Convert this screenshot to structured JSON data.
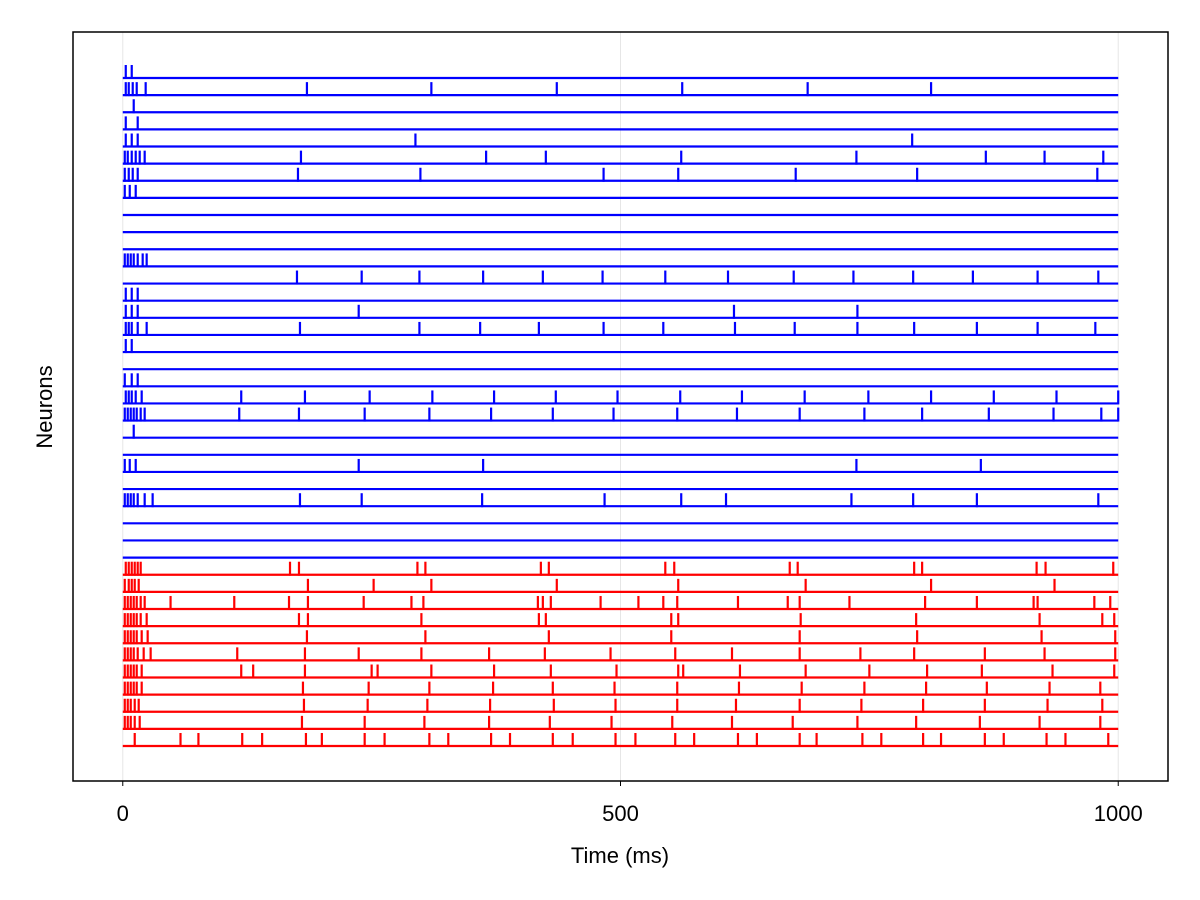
{
  "chart_data": {
    "type": "spike-trace",
    "xlabel": "Time (ms)",
    "ylabel": "Neurons",
    "xlim": [
      -50,
      1050
    ],
    "xticks": [
      0,
      500,
      1000
    ],
    "grid": true,
    "groups": [
      {
        "color": "#0000ff",
        "neurons": [
          [
            3,
            9
          ],
          [
            3,
            6,
            10,
            14,
            23,
            185,
            310,
            436,
            562,
            688,
            812
          ],
          [
            11
          ],
          [
            3,
            15
          ],
          [
            3,
            9,
            15,
            294,
            793
          ],
          [
            2,
            5,
            9,
            13,
            17,
            22,
            179,
            365,
            425,
            561,
            737,
            867,
            926,
            985
          ],
          [
            2,
            6,
            10,
            15,
            176,
            299,
            483,
            558,
            676,
            798,
            979
          ],
          [
            2,
            7,
            13
          ],
          [],
          [],
          [],
          [
            2,
            5,
            8,
            11,
            15,
            20,
            24
          ],
          [
            175,
            240,
            298,
            362,
            422,
            482,
            545,
            608,
            674,
            734,
            794,
            854,
            919,
            980
          ],
          [
            3,
            9,
            15
          ],
          [
            3,
            9,
            15,
            237,
            614,
            738
          ],
          [
            3,
            6,
            9,
            15,
            24,
            178,
            298,
            359,
            418,
            483,
            543,
            615,
            675,
            738,
            795,
            858,
            919,
            977
          ],
          [
            3,
            9
          ],
          [],
          [
            2,
            9,
            15
          ],
          [
            3,
            6,
            9,
            13,
            19,
            119,
            183,
            248,
            311,
            373,
            435,
            497,
            560,
            622,
            685,
            749,
            812,
            875,
            938,
            1000
          ],
          [
            2,
            5,
            8,
            11,
            14,
            18,
            22,
            117,
            177,
            243,
            308,
            370,
            432,
            493,
            557,
            617,
            680,
            745,
            803,
            870,
            935,
            983,
            1000
          ],
          [
            11
          ],
          [],
          [
            2,
            7,
            13,
            237,
            362,
            737,
            862
          ],
          [],
          [
            2,
            5,
            8,
            11,
            15,
            22,
            30,
            178,
            240,
            361,
            484,
            561,
            606,
            732,
            794,
            858,
            980
          ],
          [],
          [],
          []
        ]
      },
      {
        "color": "#ff0000",
        "neurons": [
          [
            3,
            6,
            9,
            12,
            15,
            18,
            168,
            177,
            296,
            304,
            420,
            428,
            545,
            554,
            670,
            678,
            795,
            803,
            918,
            927,
            995
          ],
          [
            2,
            6,
            9,
            12,
            16,
            186,
            252,
            310,
            436,
            558,
            686,
            812,
            936
          ],
          [
            2,
            5,
            8,
            11,
            14,
            18,
            22,
            48,
            112,
            167,
            186,
            242,
            290,
            302,
            417,
            422,
            430,
            480,
            518,
            543,
            557,
            618,
            668,
            680,
            730,
            806,
            858,
            915,
            919,
            976,
            992
          ],
          [
            2,
            5,
            8,
            11,
            14,
            18,
            24,
            177,
            186,
            300,
            418,
            425,
            551,
            558,
            681,
            797,
            921,
            984,
            996
          ],
          [
            2,
            5,
            8,
            11,
            14,
            19,
            25,
            185,
            304,
            428,
            551,
            680,
            798,
            923,
            997
          ],
          [
            2,
            5,
            8,
            11,
            15,
            21,
            28,
            115,
            183,
            237,
            300,
            368,
            424,
            490,
            555,
            612,
            680,
            741,
            795,
            866,
            926,
            997
          ],
          [
            2,
            5,
            8,
            11,
            14,
            19,
            119,
            131,
            183,
            250,
            256,
            310,
            373,
            430,
            496,
            558,
            563,
            620,
            686,
            750,
            808,
            863,
            934,
            996
          ],
          [
            2,
            5,
            8,
            11,
            14,
            19,
            181,
            247,
            308,
            372,
            432,
            494,
            557,
            619,
            682,
            745,
            807,
            868,
            931,
            982
          ],
          [
            2,
            5,
            8,
            12,
            16,
            182,
            246,
            306,
            369,
            433,
            495,
            557,
            616,
            680,
            742,
            804,
            866,
            929,
            984
          ],
          [
            2,
            5,
            8,
            12,
            17,
            180,
            243,
            303,
            368,
            429,
            491,
            552,
            612,
            673,
            738,
            797,
            861,
            921,
            982
          ],
          [
            12,
            58,
            76,
            120,
            140,
            184,
            200,
            243,
            263,
            308,
            327,
            370,
            389,
            432,
            452,
            495,
            515,
            555,
            574,
            618,
            637,
            680,
            697,
            743,
            762,
            804,
            822,
            866,
            885,
            928,
            947,
            990
          ]
        ]
      }
    ]
  }
}
